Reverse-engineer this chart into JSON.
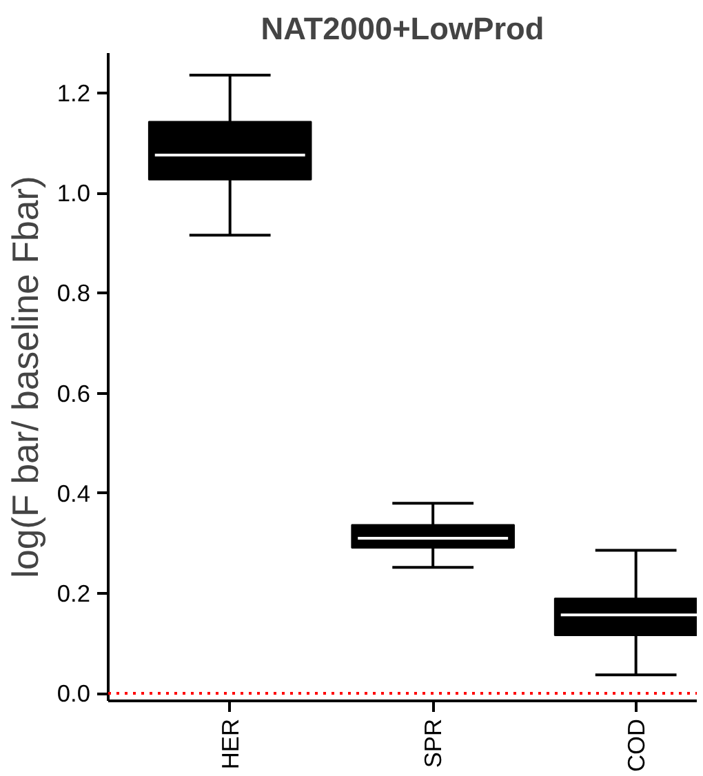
{
  "chart_data": {
    "type": "box",
    "title": "NAT2000+LowProd",
    "ylabel": "log(F bar/ baseline Fbar)",
    "categories": [
      "HER",
      "SPR",
      "COD"
    ],
    "boxes": [
      {
        "low": 0.916,
        "q1": 1.027,
        "median": 1.076,
        "q3": 1.143,
        "high": 1.236
      },
      {
        "low": 0.252,
        "q1": 0.291,
        "median": 0.31,
        "q3": 0.337,
        "high": 0.38
      },
      {
        "low": 0.037,
        "q1": 0.116,
        "median": 0.157,
        "q3": 0.19,
        "high": 0.286
      }
    ],
    "color": "#000000",
    "ylim": [
      -0.015,
      1.28
    ],
    "yticks": [
      {
        "value": 0,
        "label": "0.0"
      },
      0.2,
      0.4,
      0.6,
      0.8,
      {
        "value": 1,
        "label": "1.0"
      },
      1.2
    ],
    "ref_lines": [
      {
        "axis": "y",
        "value": 0,
        "color": "#ff0000",
        "line_style": "dotted"
      }
    ],
    "grid": false
  }
}
